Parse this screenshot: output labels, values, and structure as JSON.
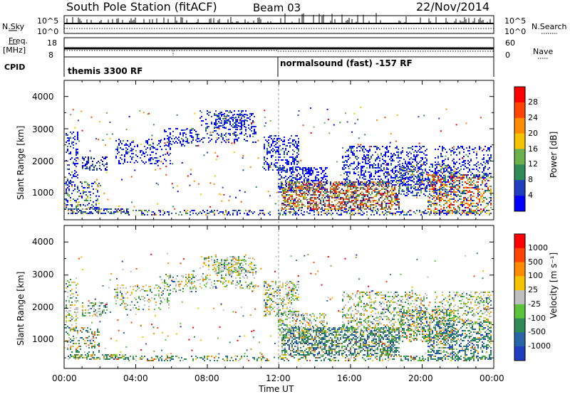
{
  "header": {
    "station": "South Pole Station (fitACF)",
    "beam": "Beam 03",
    "date": "22/Nov/2014"
  },
  "side_labels": {
    "nsky": "N.Sky",
    "freq": "Freq.",
    "mhz": "[MHz]",
    "cpid": "CPID",
    "nsearch": "N.Search",
    "nave": "Nave"
  },
  "strip_ticks": {
    "nsky_top": "10^5",
    "nsky_bottom": "10^0",
    "nsearch_top": "10^5",
    "nsearch_bottom": "10^0",
    "freq_top": "18",
    "freq_bottom": "8",
    "nave_top": "60",
    "nave_bottom": "0"
  },
  "cpid": {
    "left": "themis 3300 RF",
    "right": "normalsound (fast) -157 RF"
  },
  "chart_data": [
    {
      "type": "heatmap",
      "name": "power",
      "ylabel": "Slant Range [km]",
      "xlabel": "",
      "yticks": [
        "1000",
        "2000",
        "3000",
        "4000"
      ],
      "ylim": [
        180,
        4500
      ],
      "colorbar_label": "Power [dB]",
      "colorbar_ticks": [
        "4",
        "8",
        "12",
        "16",
        "20",
        "24",
        "28"
      ],
      "colors": [
        "#0000ff",
        "#1f3fbf",
        "#2e8b57",
        "#6ab04c",
        "#f5c400",
        "#ff8c00",
        "#ff4500",
        "#ff0000"
      ]
    },
    {
      "type": "heatmap",
      "name": "velocity",
      "ylabel": "Slant Range [km]",
      "xlabel": "Time UT",
      "xticks": [
        "00:00",
        "04:00",
        "08:00",
        "12:00",
        "16:00",
        "20:00",
        "00:00"
      ],
      "yticks": [
        "1000",
        "2000",
        "3000",
        "4000"
      ],
      "ylim": [
        180,
        4500
      ],
      "colorbar_label": "Velocity [m s⁻¹]",
      "colorbar_ticks": [
        "1000",
        "500",
        "100",
        "25",
        "-25",
        "-100",
        "-500",
        "-1000"
      ],
      "colors": [
        "#1f3fbf",
        "#2a64a8",
        "#2e8b57",
        "#5cc43a",
        "#bfbfbf",
        "#f5c400",
        "#ff8c00",
        "#ff4500",
        "#ff0000"
      ]
    }
  ]
}
